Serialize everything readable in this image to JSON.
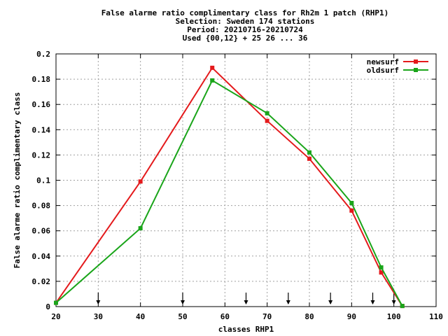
{
  "chart_data": {
    "type": "line",
    "title_lines": [
      "False alarme ratio complimentary class  for Rh2m 1 patch (RHP1)",
      "Selection: Sweden    174 stations",
      "Period: 20210716-20210724",
      "Used {00,12} + 25 26 ... 36"
    ],
    "xlabel": "classes RHP1",
    "ylabel": "False alarme ratio complimentary class",
    "xlim": [
      20,
      110
    ],
    "ylim": [
      0,
      0.2
    ],
    "x_ticks": [
      20,
      30,
      40,
      50,
      60,
      70,
      80,
      90,
      100,
      110
    ],
    "x_tick_labels": [
      "20",
      "30",
      "40",
      "50",
      "60",
      "70",
      "80",
      "90",
      "100",
      "110"
    ],
    "y_ticks": [
      0,
      0.02,
      0.04,
      0.06,
      0.08,
      0.1,
      0.12,
      0.14,
      0.16,
      0.18,
      0.2
    ],
    "y_tick_labels": [
      "0",
      "0.02",
      "0.04",
      "0.06",
      "0.08",
      "0.1",
      "0.12",
      "0.14",
      "0.16",
      "0.18",
      "0.2"
    ],
    "grid": true,
    "legend_position": "top-right",
    "series": [
      {
        "name": "newsurf",
        "color": "#e41a1c",
        "x": [
          20,
          40,
          57,
          70,
          80,
          90,
          97,
          102
        ],
        "y": [
          0.003,
          0.099,
          0.189,
          0.147,
          0.117,
          0.076,
          0.027,
          0.0005
        ]
      },
      {
        "name": "oldsurf",
        "color": "#1aa51a",
        "x": [
          20,
          40,
          57,
          70,
          80,
          90,
          97,
          102
        ],
        "y": [
          0.003,
          0.062,
          0.179,
          0.153,
          0.122,
          0.082,
          0.031,
          0.0005
        ]
      }
    ],
    "arrow_x": [
      30,
      50,
      65,
      75,
      85,
      95,
      100
    ]
  }
}
